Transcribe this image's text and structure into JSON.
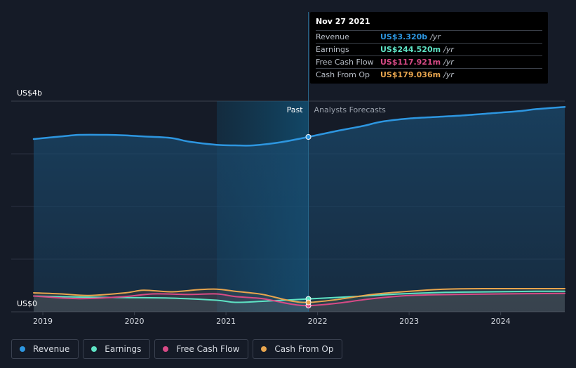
{
  "chart_data": {
    "type": "area",
    "title": "",
    "xlabel": "",
    "ylabel": "",
    "y_axis_labels": {
      "top": "US$4b",
      "bottom": "US$0"
    },
    "ylim": [
      0,
      4.0
    ],
    "xlim": [
      2018.9,
      2024.7
    ],
    "x_ticks": [
      "2019",
      "2020",
      "2021",
      "2022",
      "2023",
      "2024"
    ],
    "regions": {
      "past_label": "Past",
      "forecast_label": "Analysts Forecasts",
      "split_x": 2021.9,
      "highlight_start_x": 2020.9
    },
    "grid": true,
    "legend_placement": "bottom-left",
    "series": [
      {
        "name": "Revenue",
        "color": "#2d96e0",
        "x": [
          2018.9,
          2019.2,
          2019.4,
          2019.7,
          2019.9,
          2020.1,
          2020.4,
          2020.6,
          2020.9,
          2021.1,
          2021.3,
          2021.6,
          2021.9,
          2022.2,
          2022.5,
          2022.7,
          2023.0,
          2023.3,
          2023.6,
          2023.9,
          2024.2,
          2024.4,
          2024.7
        ],
        "y": [
          3.28,
          3.33,
          3.36,
          3.36,
          3.35,
          3.33,
          3.3,
          3.23,
          3.17,
          3.16,
          3.16,
          3.22,
          3.32,
          3.43,
          3.53,
          3.61,
          3.67,
          3.7,
          3.73,
          3.77,
          3.81,
          3.85,
          3.89
        ]
      },
      {
        "name": "Earnings",
        "color": "#5ee3c4",
        "x": [
          2018.9,
          2019.4,
          2019.9,
          2020.4,
          2020.9,
          2021.1,
          2021.4,
          2021.9,
          2022.4,
          2022.9,
          2023.4,
          2023.9,
          2024.4,
          2024.7
        ],
        "y": [
          0.3,
          0.28,
          0.27,
          0.26,
          0.22,
          0.18,
          0.2,
          0.245,
          0.29,
          0.34,
          0.37,
          0.38,
          0.39,
          0.39
        ]
      },
      {
        "name": "Free Cash Flow",
        "color": "#d84a86",
        "x": [
          2018.9,
          2019.4,
          2019.9,
          2020.2,
          2020.6,
          2020.9,
          2021.1,
          2021.4,
          2021.7,
          2021.9,
          2022.2,
          2022.6,
          2023.0,
          2023.5,
          2024.0,
          2024.7
        ],
        "y": [
          0.3,
          0.25,
          0.29,
          0.34,
          0.33,
          0.34,
          0.29,
          0.25,
          0.15,
          0.118,
          0.16,
          0.25,
          0.31,
          0.33,
          0.34,
          0.35
        ]
      },
      {
        "name": "Cash From Op",
        "color": "#e8a54e",
        "x": [
          2018.9,
          2019.2,
          2019.5,
          2019.9,
          2020.1,
          2020.4,
          2020.7,
          2020.9,
          2021.1,
          2021.4,
          2021.7,
          2021.9,
          2022.2,
          2022.6,
          2023.0,
          2023.4,
          2023.9,
          2024.4,
          2024.7
        ],
        "y": [
          0.36,
          0.34,
          0.31,
          0.36,
          0.41,
          0.38,
          0.42,
          0.43,
          0.39,
          0.33,
          0.21,
          0.179,
          0.23,
          0.33,
          0.39,
          0.43,
          0.44,
          0.44,
          0.44
        ]
      }
    ]
  },
  "tooltip": {
    "date": "Nov 27 2021",
    "x": 2021.9,
    "rows": [
      {
        "label": "Revenue",
        "value": "US$3.320b",
        "unit": "/yr",
        "color": "#2d96e0"
      },
      {
        "label": "Earnings",
        "value": "US$244.520m",
        "unit": "/yr",
        "color": "#5ee3c4"
      },
      {
        "label": "Free Cash Flow",
        "value": "US$117.921m",
        "unit": "/yr",
        "color": "#d84a86"
      },
      {
        "label": "Cash From Op",
        "value": "US$179.036m",
        "unit": "/yr",
        "color": "#e8a54e"
      }
    ]
  },
  "legend": [
    {
      "label": "Revenue",
      "color": "#2d96e0"
    },
    {
      "label": "Earnings",
      "color": "#5ee3c4"
    },
    {
      "label": "Free Cash Flow",
      "color": "#d84a86"
    },
    {
      "label": "Cash From Op",
      "color": "#e8a54e"
    }
  ]
}
